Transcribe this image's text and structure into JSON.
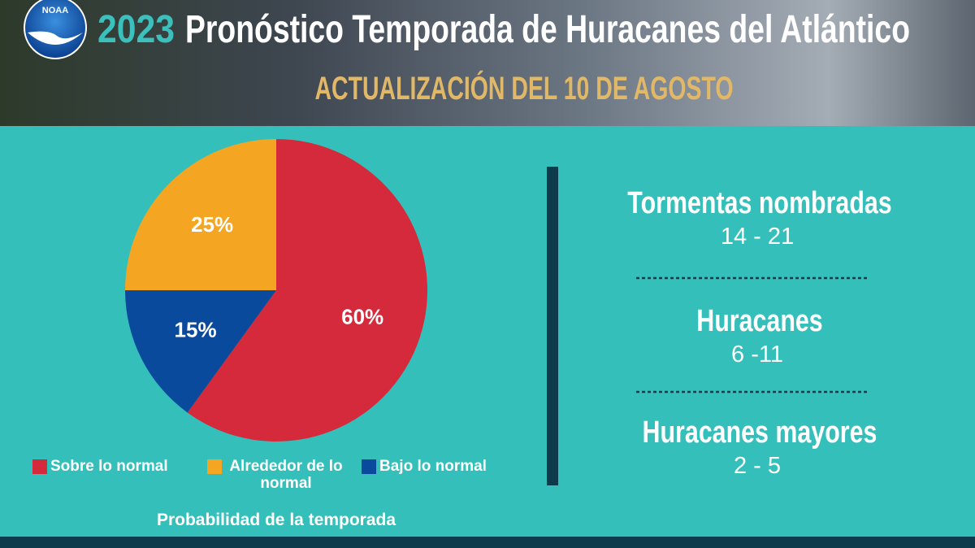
{
  "header": {
    "logo": "NOAA",
    "year": "2023",
    "title": "Pronóstico Temporada de Huracanes del Atlántico",
    "subtitle": "ACTUALIZACIÓN DEL 10 DE AGOSTO"
  },
  "chart_data": {
    "type": "pie",
    "categories": [
      "Sobre lo normal",
      "Alrededor de lo normal",
      "Bajo lo normal"
    ],
    "values": [
      60,
      25,
      15
    ],
    "value_labels": [
      "60%",
      "25%",
      "15%"
    ],
    "colors": [
      "#d42a3c",
      "#f4a623",
      "#0a4a9c"
    ],
    "caption": "Probabilidad de la temporada"
  },
  "stats": [
    {
      "label": "Tormentas nombradas",
      "range": "14 - 21"
    },
    {
      "label": "Huracanes",
      "range": "6 -11"
    },
    {
      "label": "Huracanes mayores",
      "range": "2 - 5"
    }
  ]
}
